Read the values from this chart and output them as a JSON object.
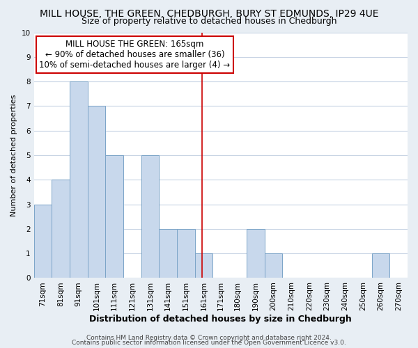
{
  "title": "MILL HOUSE, THE GREEN, CHEDBURGH, BURY ST EDMUNDS, IP29 4UE",
  "subtitle": "Size of property relative to detached houses in Chedburgh",
  "xlabel": "Distribution of detached houses by size in Chedburgh",
  "ylabel": "Number of detached properties",
  "bin_labels": [
    "71sqm",
    "81sqm",
    "91sqm",
    "101sqm",
    "111sqm",
    "121sqm",
    "131sqm",
    "141sqm",
    "151sqm",
    "161sqm",
    "171sqm",
    "180sqm",
    "190sqm",
    "200sqm",
    "210sqm",
    "220sqm",
    "230sqm",
    "240sqm",
    "250sqm",
    "260sqm",
    "270sqm"
  ],
  "bin_edges": [
    71,
    81,
    91,
    101,
    111,
    121,
    131,
    141,
    151,
    161,
    171,
    180,
    190,
    200,
    210,
    220,
    230,
    240,
    250,
    260,
    270
  ],
  "bar_heights": [
    3,
    4,
    8,
    7,
    5,
    0,
    5,
    2,
    2,
    1,
    0,
    0,
    2,
    1,
    0,
    0,
    0,
    0,
    0,
    1,
    0
  ],
  "bar_color": "#c8d8ec",
  "bar_edgecolor": "#7ba4c8",
  "grid_color": "#c8d4e4",
  "vline_x": 165,
  "vline_color": "#cc0000",
  "annotation_text": "MILL HOUSE THE GREEN: 165sqm\n← 90% of detached houses are smaller (36)\n10% of semi-detached houses are larger (4) →",
  "annotation_box_color": "#ffffff",
  "annotation_box_edgecolor": "#cc0000",
  "ylim": [
    0,
    10
  ],
  "yticks": [
    0,
    1,
    2,
    3,
    4,
    5,
    6,
    7,
    8,
    9,
    10
  ],
  "footnote1": "Contains HM Land Registry data © Crown copyright and database right 2024.",
  "footnote2": "Contains public sector information licensed under the Open Government Licence v3.0.",
  "outer_bg": "#e8eef4",
  "plot_bg": "#ffffff",
  "title_fontsize": 10,
  "subtitle_fontsize": 9,
  "xlabel_fontsize": 9,
  "ylabel_fontsize": 8,
  "tick_fontsize": 7.5,
  "annotation_fontsize": 8.5,
  "footnote_fontsize": 6.5
}
